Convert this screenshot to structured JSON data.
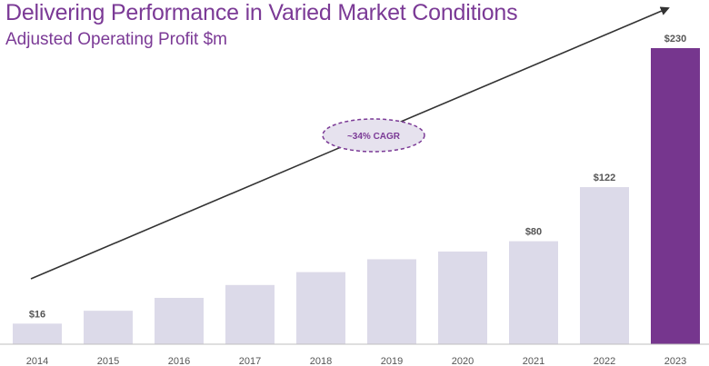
{
  "header": {
    "title": "Delivering Performance in Varied Market Conditions",
    "subtitle": "Adjusted Operating Profit $m"
  },
  "annotation": {
    "cagr_label": "~34% CAGR"
  },
  "colors": {
    "bar": "#dcdae9",
    "highlight_bar": "#76368e",
    "arrow": "#333333",
    "oval_fill": "#e6e2ee",
    "oval_stroke": "#7b3a96",
    "axis": "#bfbfbf"
  },
  "chart_data": {
    "type": "bar",
    "title": "Delivering Performance in Varied Market Conditions",
    "subtitle": "Adjusted Operating Profit $m",
    "categories": [
      "2014",
      "2015",
      "2016",
      "2017",
      "2018",
      "2019",
      "2020",
      "2021",
      "2022",
      "2023"
    ],
    "values": [
      16,
      26,
      36,
      46,
      56,
      66,
      72,
      80,
      122,
      230
    ],
    "data_labels": [
      "$16",
      "",
      "",
      "",
      "",
      "",
      "",
      "$80",
      "$122",
      "$230"
    ],
    "highlight_index": 9,
    "ylim": [
      0,
      230
    ],
    "grid": false,
    "legend": "none"
  }
}
